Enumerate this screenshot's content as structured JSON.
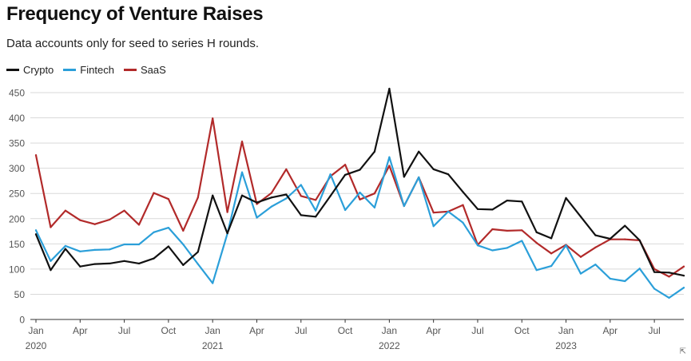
{
  "title": "Frequency of Venture Raises",
  "subtitle": "Data accounts only for seed to series H rounds.",
  "colors": {
    "Crypto": "#111111",
    "Fintech": "#2b9fd9",
    "SaaS": "#b22a2a",
    "grid": "#d9d9d9",
    "axis": "#333333"
  },
  "corner_icon": "expand-corner-icon",
  "chart_data": {
    "type": "line",
    "title": "Frequency of Venture Raises",
    "subtitle": "Data accounts only for seed to series H rounds.",
    "ylim": [
      0,
      450
    ],
    "yticks": [
      0,
      50,
      100,
      150,
      200,
      250,
      300,
      350,
      400,
      450
    ],
    "grid": "horizontal",
    "legend": "top-left",
    "x": [
      "2020-01",
      "2020-02",
      "2020-03",
      "2020-04",
      "2020-05",
      "2020-06",
      "2020-07",
      "2020-08",
      "2020-09",
      "2020-10",
      "2020-11",
      "2020-12",
      "2021-01",
      "2021-02",
      "2021-03",
      "2021-04",
      "2021-05",
      "2021-06",
      "2021-07",
      "2021-08",
      "2021-09",
      "2021-10",
      "2021-11",
      "2021-12",
      "2022-01",
      "2022-02",
      "2022-03",
      "2022-04",
      "2022-05",
      "2022-06",
      "2022-07",
      "2022-08",
      "2022-09",
      "2022-10",
      "2022-11",
      "2022-12",
      "2023-01",
      "2023-02",
      "2023-03",
      "2023-04",
      "2023-05",
      "2023-06",
      "2023-07",
      "2023-08",
      "2023-09"
    ],
    "xtick_labels": [
      {
        "month": "Jan",
        "year": "2020"
      },
      {
        "month": "Apr",
        "year": ""
      },
      {
        "month": "Jul",
        "year": ""
      },
      {
        "month": "Oct",
        "year": ""
      },
      {
        "month": "Jan",
        "year": "2021"
      },
      {
        "month": "Apr",
        "year": ""
      },
      {
        "month": "Jul",
        "year": ""
      },
      {
        "month": "Oct",
        "year": ""
      },
      {
        "month": "Jan",
        "year": "2022"
      },
      {
        "month": "Apr",
        "year": ""
      },
      {
        "month": "Jul",
        "year": ""
      },
      {
        "month": "Oct",
        "year": ""
      },
      {
        "month": "Jan",
        "year": "2023"
      },
      {
        "month": "Apr",
        "year": ""
      },
      {
        "month": "Jul",
        "year": ""
      }
    ],
    "series": [
      {
        "name": "Crypto",
        "values": [
          169,
          98,
          140,
          105,
          110,
          111,
          116,
          111,
          121,
          145,
          108,
          134,
          246,
          171,
          246,
          232,
          242,
          248,
          207,
          204,
          245,
          287,
          297,
          333,
          458,
          283,
          333,
          298,
          288,
          253,
          219,
          218,
          236,
          234,
          173,
          161,
          241,
          204,
          167,
          160,
          186,
          157,
          94,
          93,
          87
        ]
      },
      {
        "name": "Fintech",
        "values": [
          177,
          116,
          146,
          135,
          138,
          139,
          149,
          149,
          173,
          182,
          149,
          110,
          72,
          170,
          292,
          202,
          224,
          240,
          267,
          216,
          288,
          217,
          252,
          222,
          322,
          225,
          282,
          185,
          214,
          192,
          147,
          137,
          142,
          156,
          98,
          106,
          147,
          91,
          109,
          81,
          76,
          101,
          61,
          43,
          63
        ]
      },
      {
        "name": "SaaS",
        "values": [
          326,
          183,
          216,
          197,
          189,
          198,
          216,
          188,
          251,
          239,
          176,
          242,
          399,
          213,
          353,
          229,
          251,
          298,
          245,
          237,
          284,
          307,
          238,
          250,
          305,
          225,
          282,
          212,
          214,
          227,
          148,
          179,
          176,
          177,
          152,
          131,
          148,
          124,
          143,
          159,
          159,
          157,
          100,
          85,
          105
        ]
      }
    ]
  }
}
